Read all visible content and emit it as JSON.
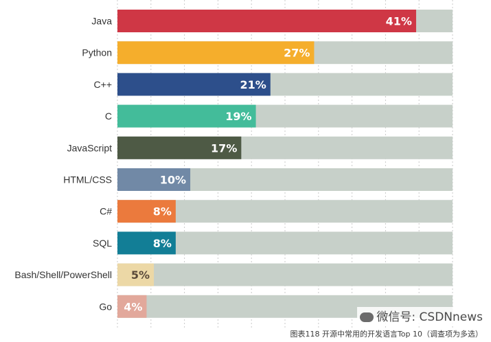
{
  "chart_data": {
    "type": "bar",
    "orientation": "horizontal",
    "title": "",
    "categories": [
      "Java",
      "Python",
      "C++",
      "C",
      "JavaScript",
      "HTML/CSS",
      "C#",
      "SQL",
      "Bash/Shell/PowerShell",
      "Go"
    ],
    "values": [
      41,
      27,
      21,
      19,
      17,
      10,
      8,
      8,
      5,
      4
    ],
    "value_labels": [
      "41%",
      "27%",
      "21%",
      "19%",
      "17%",
      "10%",
      "8%",
      "8%",
      "5%",
      "4%"
    ],
    "colors": [
      "#cf3745",
      "#f5ae2c",
      "#2d4f8b",
      "#43bc9a",
      "#4e5a45",
      "#7189a6",
      "#eb7a3d",
      "#127e96",
      "#ecd8a6",
      "#e2a89b"
    ],
    "track_color": "#c7d0c9",
    "xlim": [
      0,
      46
    ],
    "grid": true,
    "caption": "图表118 开源中常用的开发语言Top 10（调查项为多选）"
  },
  "watermark": {
    "text": "微信号: CSDNnews",
    "icon": "wechat-icon"
  }
}
